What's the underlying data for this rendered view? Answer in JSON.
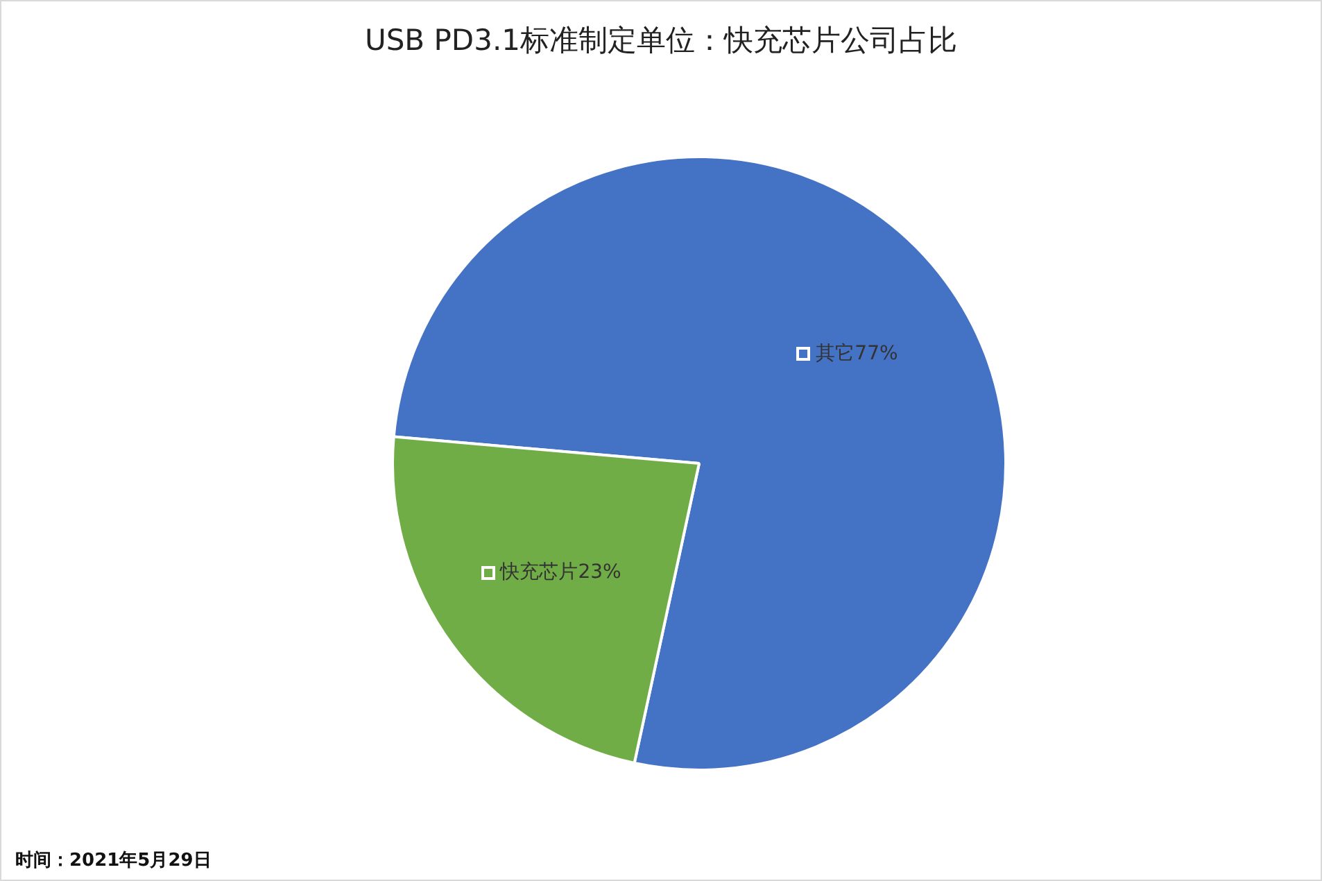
{
  "chart_data": {
    "type": "pie",
    "title": "USB PD3.1标准制定单位：快充芯片公司占比",
    "categories": [
      "其它",
      "快充芯片"
    ],
    "values": [
      77,
      23
    ],
    "value_labels": [
      "77%",
      "23%"
    ],
    "colors": [
      "#4472c4",
      "#70ad47"
    ],
    "legend": false,
    "annotations": [
      "时间：2021年5月29日"
    ]
  }
}
